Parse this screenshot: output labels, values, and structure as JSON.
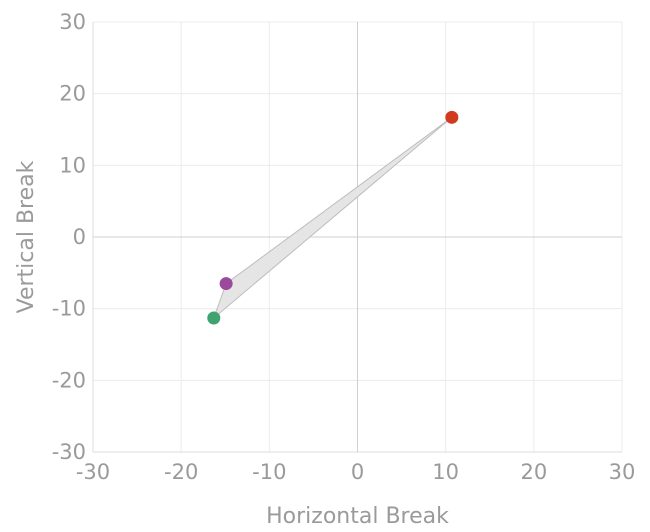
{
  "chart_data": {
    "type": "scatter",
    "xlabel": "Horizontal Break",
    "ylabel": "Vertical Break",
    "xlim": [
      -30,
      30
    ],
    "ylim": [
      -30,
      30
    ],
    "x_ticks": [
      -30,
      -20,
      -10,
      0,
      10,
      20,
      30
    ],
    "y_ticks": [
      -30,
      -20,
      -10,
      0,
      10,
      20,
      30
    ],
    "grid": true,
    "points": [
      {
        "x": 10.7,
        "y": 16.7,
        "color": "#d13a1e"
      },
      {
        "x": -14.9,
        "y": -6.5,
        "color": "#9b4a9b"
      },
      {
        "x": -16.3,
        "y": -11.3,
        "color": "#3fa36f"
      }
    ],
    "hull_fill": "#e5e5e5",
    "hull_stroke": "#bdbdbd"
  }
}
